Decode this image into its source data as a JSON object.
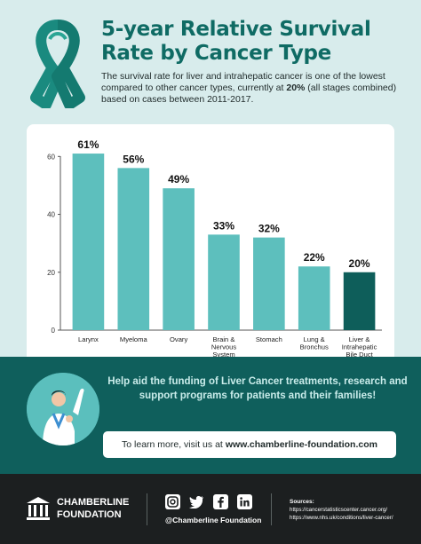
{
  "header": {
    "title_line1": "5-year Relative Survival",
    "title_line2": "Rate by Cancer Type",
    "subtitle_pre": "The survival rate for liver and intrahepatic cancer is one of the lowest compared to other cancer types, currently at ",
    "subtitle_bold": "20%",
    "subtitle_post": " (all stages combined) based on cases between 2011-2017."
  },
  "colors": {
    "brand_teal": "#0f6b64",
    "bar_light": "#5dbfbd",
    "bar_highlight": "#0e5e5a",
    "background": "#d8ecec",
    "cta_band": "#0f5f5c",
    "footer": "#1c1f20"
  },
  "chart_data": {
    "type": "bar",
    "categories": [
      [
        "Larynx"
      ],
      [
        "Myeloma"
      ],
      [
        "Ovary"
      ],
      [
        "Brain &",
        "Nervous",
        "System"
      ],
      [
        "Stomach"
      ],
      [
        "Lung &",
        "Bronchus"
      ],
      [
        "Liver &",
        "Intrahepatic",
        "Bile Duct"
      ]
    ],
    "values": [
      61,
      56,
      49,
      33,
      32,
      22,
      20
    ],
    "data_labels": [
      "61%",
      "56%",
      "49%",
      "33%",
      "32%",
      "22%",
      "20%"
    ],
    "highlight_index": 6,
    "ylim": [
      0,
      65
    ],
    "yticks": [
      0,
      20,
      40,
      60
    ],
    "grid": false
  },
  "cta": {
    "headline": "Help aid the funding of Liver Cancer treatments, research and support programs for patients and their families!",
    "link_pre": "To learn more, visit us at",
    "link_url": "www.chamberline-foundation.com"
  },
  "footer": {
    "brand_line1": "CHAMBERLINE",
    "brand_line2": "FOUNDATION",
    "handle": "@Chamberline Foundation",
    "social_icons": [
      "instagram-icon",
      "twitter-icon",
      "facebook-icon",
      "linkedin-icon"
    ],
    "sources_label": "Sources:",
    "sources": [
      "https://cancerstatisticscenter.cancer.org/",
      "https://www.nhs.uk/conditions/liver-cancer/"
    ]
  }
}
